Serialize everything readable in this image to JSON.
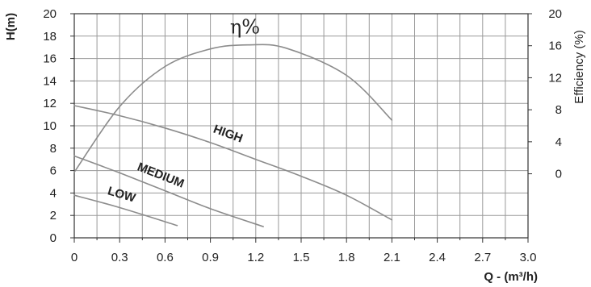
{
  "chart_data": {
    "type": "line",
    "title": "",
    "xlabel": "Q - (m³/h)",
    "ylabel": "H(m)",
    "y2label": "Efficiency (%)",
    "xlim": [
      0,
      3.0
    ],
    "ylim": [
      0,
      20
    ],
    "y2lim": [
      -8,
      20
    ],
    "x_ticks": [
      "0",
      "0.3",
      "0.6",
      "0.9",
      "1.2",
      "1.5",
      "1.8",
      "2.1",
      "2.4",
      "2.7",
      "3.0"
    ],
    "y_ticks": [
      "0",
      "2",
      "4",
      "6",
      "8",
      "10",
      "12",
      "14",
      "16",
      "18",
      "20"
    ],
    "y2_ticks": [
      "0",
      "4",
      "8",
      "12",
      "16",
      "20"
    ],
    "grid": true,
    "colors": {
      "curve": "#8c8c8c",
      "grid": "#9a9a9a",
      "axis": "#333333",
      "text": "#222222"
    },
    "series": [
      {
        "name": "HIGH",
        "axis": "left",
        "x": [
          0,
          0.3,
          0.6,
          0.9,
          1.2,
          1.5,
          1.8,
          2.1
        ],
        "y": [
          11.8,
          10.9,
          9.8,
          8.5,
          7.0,
          5.5,
          3.8,
          1.6
        ]
      },
      {
        "name": "MEDIUM",
        "axis": "left",
        "x": [
          0,
          0.3,
          0.6,
          0.9,
          1.25
        ],
        "y": [
          7.3,
          5.8,
          4.2,
          2.6,
          1.0
        ]
      },
      {
        "name": "LOW",
        "axis": "left",
        "x": [
          0,
          0.3,
          0.68
        ],
        "y": [
          3.8,
          2.7,
          1.1
        ]
      },
      {
        "name": "η%",
        "axis": "right",
        "x": [
          0,
          0.3,
          0.6,
          0.9,
          1.15,
          1.4,
          1.8,
          2.1
        ],
        "y": [
          0.2,
          8.4,
          13.4,
          15.6,
          16.1,
          15.7,
          12.3,
          6.7
        ]
      }
    ]
  }
}
